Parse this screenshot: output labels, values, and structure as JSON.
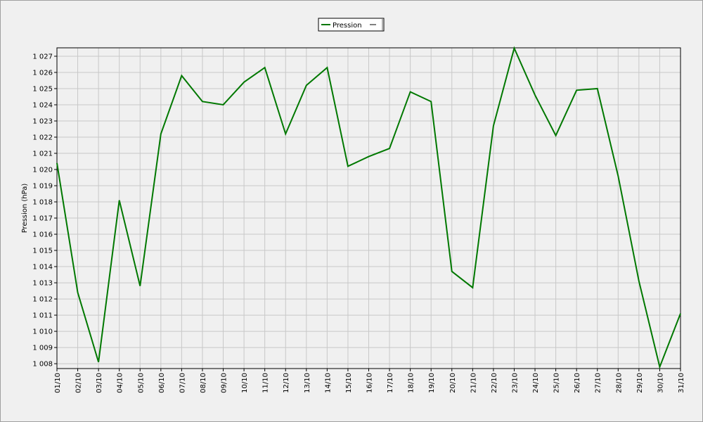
{
  "chart_data": {
    "type": "line",
    "y_label": "Pression (hPa)",
    "categories": [
      "01/10",
      "02/10",
      "03/10",
      "04/10",
      "05/10",
      "06/10",
      "07/10",
      "08/10",
      "09/10",
      "10/10",
      "11/10",
      "12/10",
      "13/10",
      "14/10",
      "15/10",
      "16/10",
      "17/10",
      "18/10",
      "19/10",
      "20/10",
      "21/10",
      "22/10",
      "23/10",
      "24/10",
      "25/10",
      "26/10",
      "27/10",
      "28/10",
      "29/10",
      "30/10",
      "31/10"
    ],
    "series": [
      {
        "name": "Pression",
        "color": "#007800",
        "values": [
          1020.4,
          1012.4,
          1008.1,
          1018.1,
          1012.8,
          1022.2,
          1025.8,
          1024.2,
          1024.0,
          1025.4,
          1026.3,
          1022.2,
          1025.2,
          1026.3,
          1020.2,
          1020.8,
          1021.3,
          1024.8,
          1024.2,
          1013.7,
          1012.7,
          1022.7,
          1027.5,
          1024.6,
          1022.1,
          1024.9,
          1025.0,
          1019.6,
          1013.1,
          1007.8,
          1011.1
        ]
      }
    ],
    "ylim": [
      1007.7,
      1027.52
    ],
    "yticks": [
      {
        "value": 1008,
        "label": "1 008"
      },
      {
        "value": 1009,
        "label": "1 009"
      },
      {
        "value": 1010,
        "label": "1 010"
      },
      {
        "value": 1011,
        "label": "1 011"
      },
      {
        "value": 1012,
        "label": "1 012"
      },
      {
        "value": 1013,
        "label": "1 013"
      },
      {
        "value": 1014,
        "label": "1 014"
      },
      {
        "value": 1015,
        "label": "1 015"
      },
      {
        "value": 1016,
        "label": "1 016"
      },
      {
        "value": 1017,
        "label": "1 017"
      },
      {
        "value": 1018,
        "label": "1 018"
      },
      {
        "value": 1019,
        "label": "1 019"
      },
      {
        "value": 1020,
        "label": "1 020"
      },
      {
        "value": 1021,
        "label": "1 021"
      },
      {
        "value": 1022,
        "label": "1 022"
      },
      {
        "value": 1023,
        "label": "1 023"
      },
      {
        "value": 1024,
        "label": "1 024"
      },
      {
        "value": 1025,
        "label": "1 025"
      },
      {
        "value": 1026,
        "label": "1 026"
      },
      {
        "value": 1027,
        "label": "1 027"
      }
    ],
    "grid": true
  }
}
